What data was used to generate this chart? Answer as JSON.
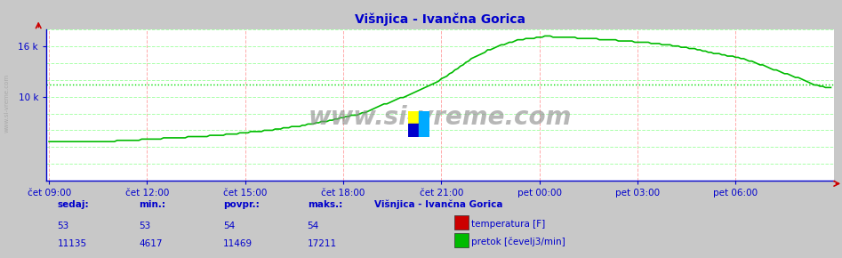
{
  "title": "Višnjica - Ivančna Gorica",
  "bg_color": "#ffffff",
  "plot_bg_color": "#ffffff",
  "outer_bg_color": "#c8c8c8",
  "grid_color_v": "#ffaaaa",
  "grid_color_h": "#aaffaa",
  "title_color": "#0000cc",
  "axis_color": "#0000cc",
  "tick_label_color": "#0000cc",
  "watermark": "www.si-vreme.com",
  "x_labels": [
    "čet 09:00",
    "čet 12:00",
    "čet 15:00",
    "čet 18:00",
    "čet 21:00",
    "pet 00:00",
    "pet 03:00",
    "pet 06:00"
  ],
  "ylim": [
    0,
    18000
  ],
  "temp_color": "#cc0000",
  "flow_color": "#00bb00",
  "avg_line_color": "#00dd00",
  "avg_line_value": 11469,
  "temp_value": 53,
  "temp_min": 53,
  "temp_avg": 54,
  "temp_max": 54,
  "flow_sedaj": 11135,
  "flow_min": 4617,
  "flow_avg": 11469,
  "flow_max": 17211,
  "station_label": "Višnjica - Ivančna Gorica",
  "label_temp": "temperatura [F]",
  "label_flow": "pretok [čevelj3/min]",
  "sedaj_label": "sedaj:",
  "min_label": "min.:",
  "povpr_label": "povpr.:",
  "maks_label": "maks.:",
  "info_color": "#0000cc",
  "temp_display": 53,
  "flow_shape_points": [
    [
      0.0,
      4617
    ],
    [
      0.04,
      4650
    ],
    [
      0.08,
      4700
    ],
    [
      0.12,
      4900
    ],
    [
      0.16,
      5100
    ],
    [
      0.2,
      5300
    ],
    [
      0.24,
      5600
    ],
    [
      0.28,
      6000
    ],
    [
      0.32,
      6500
    ],
    [
      0.36,
      7200
    ],
    [
      0.4,
      8000
    ],
    [
      0.42,
      8800
    ],
    [
      0.44,
      9500
    ],
    [
      0.46,
      10200
    ],
    [
      0.48,
      11000
    ],
    [
      0.5,
      12000
    ],
    [
      0.52,
      13200
    ],
    [
      0.54,
      14500
    ],
    [
      0.56,
      15500
    ],
    [
      0.58,
      16200
    ],
    [
      0.6,
      16800
    ],
    [
      0.62,
      17000
    ],
    [
      0.635,
      17211
    ],
    [
      0.65,
      17150
    ],
    [
      0.67,
      17050
    ],
    [
      0.7,
      16900
    ],
    [
      0.73,
      16700
    ],
    [
      0.76,
      16500
    ],
    [
      0.79,
      16200
    ],
    [
      0.82,
      15800
    ],
    [
      0.85,
      15200
    ],
    [
      0.875,
      14800
    ],
    [
      0.89,
      14500
    ],
    [
      0.905,
      14000
    ],
    [
      0.92,
      13500
    ],
    [
      0.935,
      13000
    ],
    [
      0.95,
      12500
    ],
    [
      0.96,
      12200
    ],
    [
      0.97,
      11800
    ],
    [
      0.975,
      11600
    ],
    [
      0.98,
      11400
    ],
    [
      0.985,
      11300
    ],
    [
      0.99,
      11200
    ],
    [
      0.995,
      11150
    ],
    [
      1.0,
      11135
    ]
  ]
}
